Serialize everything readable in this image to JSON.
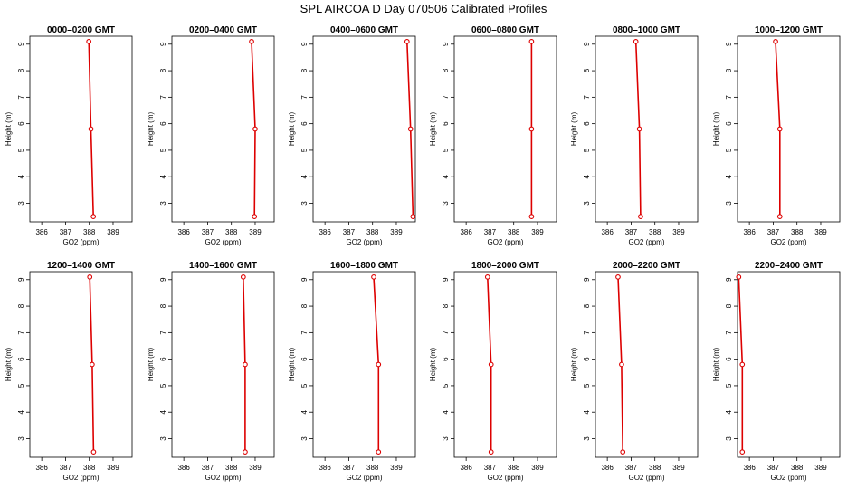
{
  "title": "SPL AIRCOA D  Day 070506  Calibrated Profiles",
  "colors": {
    "series": "#dd0000",
    "axis": "#000000"
  },
  "chart_data": [
    {
      "type": "line",
      "title": "0000–0200 GMT",
      "xlabel": "GO2 (ppm)",
      "ylabel": "Height (m)",
      "xlim": [
        385.5,
        389.8
      ],
      "ylim": [
        2.3,
        9.3
      ],
      "xticks": [
        386,
        387,
        388,
        389
      ],
      "yticks": [
        3,
        4,
        5,
        6,
        7,
        8,
        9
      ],
      "grid": false,
      "series": [
        {
          "x": [
            387.98,
            388.07,
            388.17
          ],
          "y": [
            9.1,
            5.8,
            2.5
          ]
        }
      ]
    },
    {
      "type": "line",
      "title": "0200–0400 GMT",
      "xlabel": "GO2 (ppm)",
      "ylabel": "Height (m)",
      "xlim": [
        385.5,
        389.8
      ],
      "ylim": [
        2.3,
        9.3
      ],
      "xticks": [
        386,
        387,
        388,
        389
      ],
      "yticks": [
        3,
        4,
        5,
        6,
        7,
        8,
        9
      ],
      "grid": false,
      "series": [
        {
          "x": [
            388.85,
            389.0,
            388.97
          ],
          "y": [
            9.1,
            5.8,
            2.5
          ]
        }
      ]
    },
    {
      "type": "line",
      "title": "0400–0600 GMT",
      "xlabel": "GO2 (ppm)",
      "ylabel": "Height (m)",
      "xlim": [
        385.5,
        389.8
      ],
      "ylim": [
        2.3,
        9.3
      ],
      "xticks": [
        386,
        387,
        388,
        389
      ],
      "yticks": [
        3,
        4,
        5,
        6,
        7,
        8,
        9
      ],
      "grid": false,
      "series": [
        {
          "x": [
            389.45,
            389.6,
            389.7
          ],
          "y": [
            9.1,
            5.8,
            2.5
          ]
        }
      ]
    },
    {
      "type": "line",
      "title": "0600–0800 GMT",
      "xlabel": "GO2 (ppm)",
      "ylabel": "Height (m)",
      "xlim": [
        385.5,
        389.8
      ],
      "ylim": [
        2.3,
        9.3
      ],
      "xticks": [
        386,
        387,
        388,
        389
      ],
      "yticks": [
        3,
        4,
        5,
        6,
        7,
        8,
        9
      ],
      "grid": false,
      "series": [
        {
          "x": [
            388.75,
            388.75,
            388.75
          ],
          "y": [
            9.1,
            5.8,
            2.5
          ]
        }
      ]
    },
    {
      "type": "line",
      "title": "0800–1000 GMT",
      "xlabel": "GO2 (ppm)",
      "ylabel": "Height (m)",
      "xlim": [
        385.5,
        389.8
      ],
      "ylim": [
        2.3,
        9.3
      ],
      "xticks": [
        386,
        387,
        388,
        389
      ],
      "yticks": [
        3,
        4,
        5,
        6,
        7,
        8,
        9
      ],
      "grid": false,
      "series": [
        {
          "x": [
            387.2,
            387.35,
            387.4
          ],
          "y": [
            9.1,
            5.8,
            2.5
          ]
        }
      ]
    },
    {
      "type": "line",
      "title": "1000–1200 GMT",
      "xlabel": "GO2 (ppm)",
      "ylabel": "Height (m)",
      "xlim": [
        385.5,
        389.8
      ],
      "ylim": [
        2.3,
        9.3
      ],
      "xticks": [
        386,
        387,
        388,
        389
      ],
      "yticks": [
        3,
        4,
        5,
        6,
        7,
        8,
        9
      ],
      "grid": false,
      "series": [
        {
          "x": [
            387.1,
            387.28,
            387.28
          ],
          "y": [
            9.1,
            5.8,
            2.5
          ]
        }
      ]
    },
    {
      "type": "line",
      "title": "1200–1400 GMT",
      "xlabel": "GO2 (ppm)",
      "ylabel": "Height (m)",
      "xlim": [
        385.5,
        389.8
      ],
      "ylim": [
        2.3,
        9.3
      ],
      "xticks": [
        386,
        387,
        388,
        389
      ],
      "yticks": [
        3,
        4,
        5,
        6,
        7,
        8,
        9
      ],
      "grid": false,
      "series": [
        {
          "x": [
            388.02,
            388.12,
            388.18
          ],
          "y": [
            9.1,
            5.8,
            2.5
          ]
        }
      ]
    },
    {
      "type": "line",
      "title": "1400–1600 GMT",
      "xlabel": "GO2 (ppm)",
      "ylabel": "Height (m)",
      "xlim": [
        385.5,
        389.8
      ],
      "ylim": [
        2.3,
        9.3
      ],
      "xticks": [
        386,
        387,
        388,
        389
      ],
      "yticks": [
        3,
        4,
        5,
        6,
        7,
        8,
        9
      ],
      "grid": false,
      "series": [
        {
          "x": [
            388.5,
            388.58,
            388.58
          ],
          "y": [
            9.1,
            5.8,
            2.5
          ]
        }
      ]
    },
    {
      "type": "line",
      "title": "1600–1800 GMT",
      "xlabel": "GO2 (ppm)",
      "ylabel": "Height (m)",
      "xlim": [
        385.5,
        389.8
      ],
      "ylim": [
        2.3,
        9.3
      ],
      "xticks": [
        386,
        387,
        388,
        389
      ],
      "yticks": [
        3,
        4,
        5,
        6,
        7,
        8,
        9
      ],
      "grid": false,
      "series": [
        {
          "x": [
            388.05,
            388.25,
            388.25
          ],
          "y": [
            9.1,
            5.8,
            2.5
          ]
        }
      ]
    },
    {
      "type": "line",
      "title": "1800–2000 GMT",
      "xlabel": "GO2 (ppm)",
      "ylabel": "Height (m)",
      "xlim": [
        385.5,
        389.8
      ],
      "ylim": [
        2.3,
        9.3
      ],
      "xticks": [
        386,
        387,
        388,
        389
      ],
      "yticks": [
        3,
        4,
        5,
        6,
        7,
        8,
        9
      ],
      "grid": false,
      "series": [
        {
          "x": [
            386.9,
            387.05,
            387.05
          ],
          "y": [
            9.1,
            5.8,
            2.5
          ]
        }
      ]
    },
    {
      "type": "line",
      "title": "2000–2200 GMT",
      "xlabel": "GO2 (ppm)",
      "ylabel": "Height (m)",
      "xlim": [
        385.5,
        389.8
      ],
      "ylim": [
        2.3,
        9.3
      ],
      "xticks": [
        386,
        387,
        388,
        389
      ],
      "yticks": [
        3,
        4,
        5,
        6,
        7,
        8,
        9
      ],
      "grid": false,
      "series": [
        {
          "x": [
            386.45,
            386.6,
            386.65
          ],
          "y": [
            9.1,
            5.8,
            2.5
          ]
        }
      ]
    },
    {
      "type": "line",
      "title": "2200–2400 GMT",
      "xlabel": "GO2 (ppm)",
      "ylabel": "Height (m)",
      "xlim": [
        385.5,
        389.8
      ],
      "ylim": [
        2.3,
        9.3
      ],
      "xticks": [
        386,
        387,
        388,
        389
      ],
      "yticks": [
        3,
        4,
        5,
        6,
        7,
        8,
        9
      ],
      "grid": false,
      "series": [
        {
          "x": [
            385.55,
            385.7,
            385.7
          ],
          "y": [
            9.1,
            5.8,
            2.5
          ]
        }
      ]
    }
  ]
}
